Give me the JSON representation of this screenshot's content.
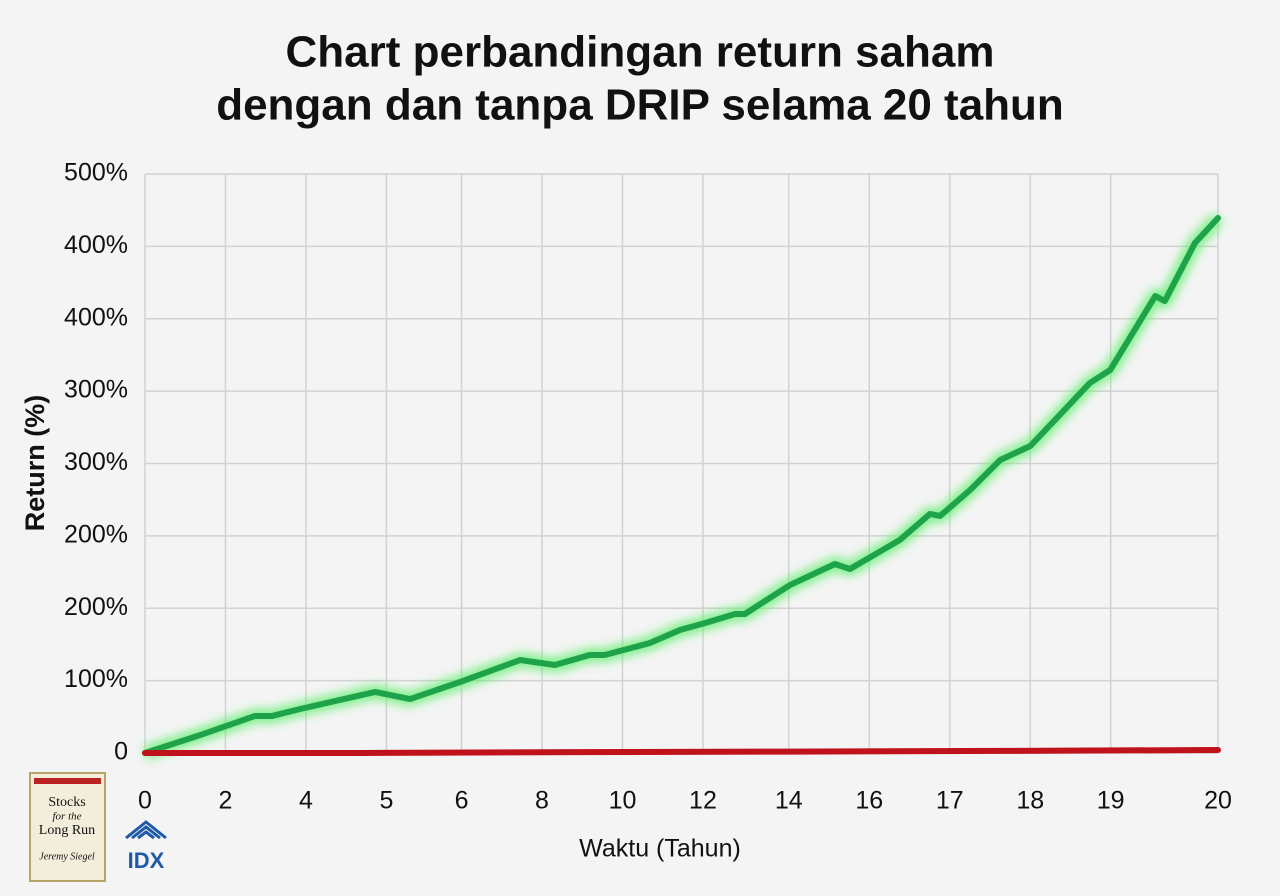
{
  "chart_data": {
    "type": "line",
    "title": [
      "Chart perbandingan return saham",
      "dengan dan tanpa DRIP selama 20 tahun"
    ],
    "xlabel": "Waktu (Tahun)",
    "ylabel": "Return (%)",
    "xlim": [
      0,
      20
    ],
    "ylim": [
      0,
      500
    ],
    "xticks": [
      0,
      {
        "value": 1.5,
        "label": "2"
      },
      {
        "value": 3.0,
        "label": "4"
      },
      {
        "value": 4.5,
        "label": "5"
      },
      {
        "value": 5.9,
        "label": "6"
      },
      {
        "value": 7.4,
        "label": "8"
      },
      {
        "value": 8.9,
        "label": "10"
      },
      {
        "value": 10.4,
        "label": "12"
      },
      {
        "value": 12.0,
        "label": "14"
      },
      {
        "value": 13.5,
        "label": "16"
      },
      {
        "value": 15.0,
        "label": "17"
      },
      {
        "value": 16.5,
        "label": "18"
      },
      {
        "value": 18.0,
        "label": "19"
      },
      20
    ],
    "yticks": [
      0,
      {
        "value": 62.5,
        "label": "100%"
      },
      {
        "value": 125,
        "label": "200%"
      },
      {
        "value": 187.5,
        "label": "200%"
      },
      {
        "value": 250,
        "label": "300%"
      },
      {
        "value": 312.5,
        "label": "300%"
      },
      {
        "value": 375,
        "label": "400%"
      },
      {
        "value": 437.5,
        "label": "400%"
      },
      {
        "value": 500,
        "label": "500%"
      }
    ],
    "grid": true,
    "series": [
      {
        "color": "#1fa34a",
        "glow": "#5cf06a",
        "x": [
          0,
          1.03,
          2.05,
          2.37,
          2.89,
          4.29,
          4.94,
          5.87,
          6.99,
          7.64,
          8.29,
          8.57,
          9.41,
          9.97,
          10.44,
          11.0,
          11.18,
          12.02,
          12.86,
          13.14,
          14.07,
          14.63,
          14.82,
          15.38,
          15.94,
          16.5,
          17.05,
          17.61,
          17.99,
          18.83,
          19.01,
          19.57,
          20
        ],
        "values": [
          0,
          15.5,
          32,
          32,
          38,
          52.7,
          46.6,
          61.3,
          80.3,
          76,
          84.6,
          84.6,
          95,
          106.2,
          112.3,
          120,
          120,
          145,
          163.2,
          158.9,
          184,
          206.4,
          204.7,
          227.1,
          253,
          265.1,
          291.9,
          319.5,
          330.7,
          394.6,
          390.3,
          440.4,
          462
        ]
      },
      {
        "color": "#c0121b",
        "x": [
          0,
          4,
          8,
          12,
          16,
          20
        ],
        "values": [
          0,
          0,
          0.8,
          1.2,
          1.8,
          2.6
        ]
      }
    ]
  },
  "branding": {
    "book_title": [
      "Stocks",
      "for the",
      "Long Run"
    ],
    "book_author": "Jeremy Siegel",
    "logo": "IDX"
  }
}
